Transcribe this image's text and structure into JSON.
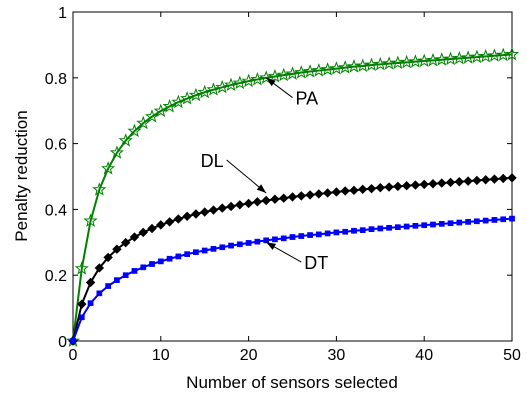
{
  "chart_data": {
    "type": "line",
    "title": "",
    "xlabel": "Number of sensors selected",
    "ylabel": "Penalty reduction",
    "xlim": [
      0,
      50
    ],
    "ylim": [
      0,
      1
    ],
    "xticks": [
      0,
      10,
      20,
      30,
      40,
      50
    ],
    "yticks": [
      0,
      0.2,
      0.4,
      0.6,
      0.8,
      1
    ],
    "xtick_labels": [
      "0",
      "10",
      "20",
      "30",
      "40",
      "50"
    ],
    "ytick_labels": [
      "0",
      "0.2",
      "0.4",
      "0.6",
      "0.8",
      "1"
    ],
    "grid": false,
    "legend": "none",
    "x": [
      0,
      1,
      2,
      3,
      4,
      5,
      6,
      7,
      8,
      9,
      10,
      11,
      12,
      13,
      14,
      15,
      16,
      17,
      18,
      19,
      20,
      21,
      22,
      23,
      24,
      25,
      26,
      27,
      28,
      29,
      30,
      31,
      32,
      33,
      34,
      35,
      36,
      37,
      38,
      39,
      40,
      41,
      42,
      43,
      44,
      45,
      46,
      47,
      48,
      49,
      50
    ],
    "series": [
      {
        "label": "PA",
        "color": "#008000",
        "marker": "star",
        "values": [
          0,
          0.22,
          0.365,
          0.46,
          0.524,
          0.572,
          0.609,
          0.638,
          0.662,
          0.682,
          0.699,
          0.713,
          0.726,
          0.737,
          0.747,
          0.756,
          0.764,
          0.771,
          0.778,
          0.784,
          0.79,
          0.795,
          0.8,
          0.804,
          0.808,
          0.812,
          0.816,
          0.819,
          0.822,
          0.825,
          0.828,
          0.831,
          0.834,
          0.836,
          0.839,
          0.841,
          0.843,
          0.845,
          0.847,
          0.849,
          0.851,
          0.853,
          0.855,
          0.857,
          0.859,
          0.861,
          0.863,
          0.865,
          0.867,
          0.869,
          0.871
        ],
        "annotation": {
          "x": 25,
          "y": 0.74,
          "point_x": 22,
          "point_y": 0.8
        }
      },
      {
        "label": "DL",
        "color": "#000000",
        "marker": "diamond",
        "values": [
          0,
          0.112,
          0.178,
          0.222,
          0.254,
          0.279,
          0.299,
          0.316,
          0.33,
          0.342,
          0.353,
          0.362,
          0.371,
          0.379,
          0.386,
          0.392,
          0.398,
          0.404,
          0.409,
          0.414,
          0.418,
          0.423,
          0.427,
          0.431,
          0.434,
          0.438,
          0.441,
          0.444,
          0.447,
          0.45,
          0.453,
          0.456,
          0.458,
          0.461,
          0.463,
          0.466,
          0.468,
          0.47,
          0.472,
          0.474,
          0.476,
          0.478,
          0.48,
          0.482,
          0.484,
          0.486,
          0.488,
          0.49,
          0.492,
          0.494,
          0.496
        ],
        "annotation": {
          "x": 17.5,
          "y": 0.55,
          "point_x": 22,
          "point_y": 0.45
        }
      },
      {
        "label": "DT",
        "color": "#0000FF",
        "marker": "square",
        "values": [
          0,
          0.072,
          0.115,
          0.145,
          0.167,
          0.185,
          0.2,
          0.213,
          0.224,
          0.234,
          0.242,
          0.25,
          0.257,
          0.264,
          0.27,
          0.275,
          0.28,
          0.285,
          0.29,
          0.294,
          0.298,
          0.302,
          0.306,
          0.309,
          0.312,
          0.316,
          0.319,
          0.322,
          0.324,
          0.327,
          0.33,
          0.332,
          0.335,
          0.337,
          0.34,
          0.342,
          0.344,
          0.346,
          0.348,
          0.35,
          0.352,
          0.354,
          0.356,
          0.358,
          0.36,
          0.362,
          0.364,
          0.366,
          0.368,
          0.37,
          0.372
        ],
        "annotation": {
          "x": 26,
          "y": 0.24,
          "point_x": 22,
          "point_y": 0.3
        }
      }
    ]
  }
}
